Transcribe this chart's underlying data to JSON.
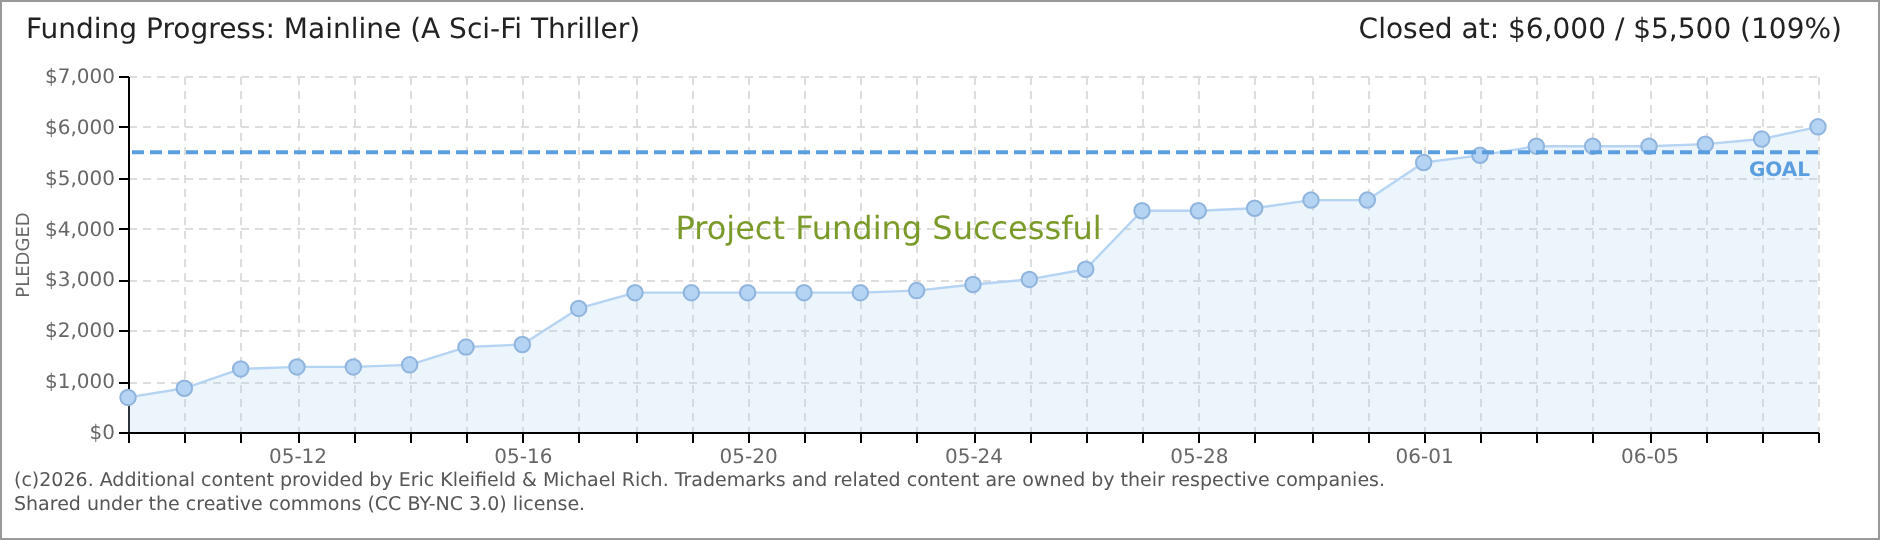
{
  "chart_data": {
    "type": "area",
    "title": "Funding Progress: Mainline (A Sci-Fi Thriller)",
    "subtitle": "Closed at: $6,000 / $5,500 (109%)",
    "ylabel": "PLEDGED",
    "x": [
      "--05-09",
      "--05-10",
      "--05-11",
      "--05-12",
      "--05-13",
      "--05-14",
      "--05-15",
      "--05-16",
      "--05-17",
      "--05-18",
      "--05-19",
      "--05-20",
      "--05-21",
      "--05-22",
      "--05-23",
      "--05-24",
      "--05-25",
      "--05-26",
      "--05-27",
      "--05-28",
      "--05-29",
      "--05-30",
      "--05-31",
      "--06-01",
      "--06-02",
      "--06-03",
      "--06-04",
      "--06-05",
      "--06-06",
      "--06-07",
      "--06-08"
    ],
    "series": [
      {
        "color": "#b5d3f3",
        "values": [
          680,
          860,
          1240,
          1280,
          1280,
          1320,
          1670,
          1720,
          2430,
          2740,
          2740,
          2740,
          2740,
          2740,
          2780,
          2900,
          3000,
          3200,
          4350,
          4350,
          4400,
          4560,
          4560,
          5300,
          5440,
          5620,
          5620,
          5620,
          5660,
          5760,
          6000
        ]
      }
    ],
    "marker": "circle",
    "grid": true,
    "xlim": [
      "--05-09",
      "--06-08"
    ],
    "xticks": [
      {
        "value": "--05-09",
        "label": null
      },
      {
        "value": "--05-10",
        "label": null
      },
      {
        "value": "--05-11",
        "label": null
      },
      {
        "value": "--05-12",
        "label": "05-12"
      },
      {
        "value": "--05-13",
        "label": null
      },
      {
        "value": "--05-14",
        "label": null
      },
      {
        "value": "--05-15",
        "label": null
      },
      {
        "value": "--05-16",
        "label": "05-16"
      },
      {
        "value": "--05-17",
        "label": null
      },
      {
        "value": "--05-18",
        "label": null
      },
      {
        "value": "--05-19",
        "label": null
      },
      {
        "value": "--05-20",
        "label": "05-20"
      },
      {
        "value": "--05-21",
        "label": null
      },
      {
        "value": "--05-22",
        "label": null
      },
      {
        "value": "--05-23",
        "label": null
      },
      {
        "value": "--05-24",
        "label": "05-24"
      },
      {
        "value": "--05-25",
        "label": null
      },
      {
        "value": "--05-26",
        "label": null
      },
      {
        "value": "--05-27",
        "label": null
      },
      {
        "value": "--05-28",
        "label": "05-28"
      },
      {
        "value": "--05-29",
        "label": null
      },
      {
        "value": "--05-30",
        "label": null
      },
      {
        "value": "--05-31",
        "label": null
      },
      {
        "value": "--06-01",
        "label": "06-01"
      },
      {
        "value": "--06-02",
        "label": null
      },
      {
        "value": "--06-03",
        "label": null
      },
      {
        "value": "--06-04",
        "label": null
      },
      {
        "value": "--06-05",
        "label": "06-05"
      },
      {
        "value": "--06-06",
        "label": null
      },
      {
        "value": "--06-07",
        "label": null
      },
      {
        "value": "--06-08",
        "label": null
      }
    ],
    "ylim": [
      0,
      7000
    ],
    "yticks": [
      {
        "value": 0,
        "label": "$0"
      },
      {
        "value": 1000,
        "label": "$1,000"
      },
      {
        "value": 2000,
        "label": "$2,000"
      },
      {
        "value": 3000,
        "label": "$3,000"
      },
      {
        "value": 4000,
        "label": "$4,000"
      },
      {
        "value": 5000,
        "label": "$5,000"
      },
      {
        "value": 6000,
        "label": "$6,000"
      },
      {
        "value": 7000,
        "label": "$7,000"
      }
    ],
    "ref_lines": [
      {
        "axis": "y",
        "value": 5500,
        "label": "GOAL",
        "color": "#5b9ee0",
        "line_style": "dashed"
      }
    ],
    "annotations": [
      "Project Funding Successful",
      "(c)2026. Additional content provided by Eric Kleifield & Michael Rich. Trademarks and related content are owned by their respective companies.",
      "Shared under the creative commons (CC BY-NC 3.0) license."
    ]
  }
}
